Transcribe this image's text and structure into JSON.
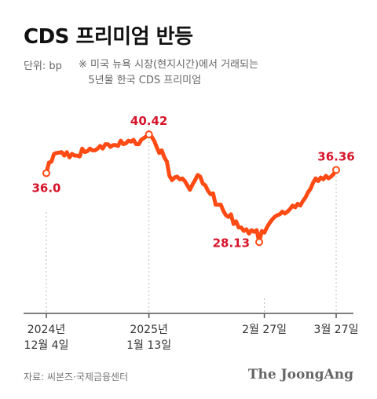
{
  "header": {
    "title": "CDS 프리미엄 반등",
    "unit": "단위: bp",
    "note": "※ 미국 뉴욕 시장(현지시간)에서 거래되는\n   5년물 한국 CDS 프리미엄"
  },
  "footer": {
    "source": "자료: 씨본즈·국제금융센터",
    "logo": "The JoongAng"
  },
  "colors": {
    "line": "#ff4a14",
    "marker_label": "#d6142a",
    "axis": "#555555",
    "guide": "#bbbbbb"
  },
  "chart_data": {
    "type": "line",
    "title": "CDS 프리미엄 반등",
    "ylabel": "단위: bp",
    "ylim": [
      20,
      45
    ],
    "grid": false,
    "x_ticks": [
      {
        "label": [
          "2024년",
          "12월 4일"
        ],
        "x": 0
      },
      {
        "label": [
          "2025년",
          "1월 13일"
        ],
        "x": 40
      },
      {
        "label": [
          "2월 27일"
        ],
        "x": 85
      },
      {
        "label": [
          "3월 27일"
        ],
        "x": 113
      }
    ],
    "annotations": [
      {
        "x": 0,
        "y": 36.0,
        "label": "36.0"
      },
      {
        "x": 40,
        "y": 40.42,
        "label": "40.42"
      },
      {
        "x": 83,
        "y": 28.13,
        "label": "28.13"
      },
      {
        "x": 113,
        "y": 36.36,
        "label": "36.36"
      }
    ],
    "series": [
      {
        "values": [
          [
            0,
            36.0
          ],
          [
            1,
            37.2
          ],
          [
            2,
            37.3
          ],
          [
            3,
            38.2
          ],
          [
            4,
            38.3
          ],
          [
            6,
            38.4
          ],
          [
            7,
            38.0
          ],
          [
            8,
            38.4
          ],
          [
            9,
            37.8
          ],
          [
            10,
            38.2
          ],
          [
            11,
            38.0
          ],
          [
            12,
            38.0
          ],
          [
            13,
            37.9
          ],
          [
            14,
            38.8
          ],
          [
            15,
            38.4
          ],
          [
            16,
            38.5
          ],
          [
            17,
            38.8
          ],
          [
            18,
            38.6
          ],
          [
            19,
            38.6
          ],
          [
            20,
            38.8
          ],
          [
            21,
            39.1
          ],
          [
            22,
            38.8
          ],
          [
            23,
            39.3
          ],
          [
            24,
            39.3
          ],
          [
            25,
            39.0
          ],
          [
            26,
            39.2
          ],
          [
            27,
            39.2
          ],
          [
            28,
            39.1
          ],
          [
            29,
            39.7
          ],
          [
            30,
            39.3
          ],
          [
            31,
            39.4
          ],
          [
            32,
            39.7
          ],
          [
            33,
            39.6
          ],
          [
            34,
            39.8
          ],
          [
            35,
            39.3
          ],
          [
            36,
            39.3
          ],
          [
            37,
            39.8
          ],
          [
            38,
            40.0
          ],
          [
            39,
            40.2
          ],
          [
            40,
            40.42
          ],
          [
            41,
            40.2
          ],
          [
            42,
            39.7
          ],
          [
            43,
            39.0
          ],
          [
            44,
            38.3
          ],
          [
            45,
            38.6
          ],
          [
            46,
            37.8
          ],
          [
            47,
            37.3
          ],
          [
            48,
            35.7
          ],
          [
            49,
            35.2
          ],
          [
            50,
            35.5
          ],
          [
            51,
            35.6
          ],
          [
            52,
            35.3
          ],
          [
            53,
            35.4
          ],
          [
            54,
            35.1
          ],
          [
            55,
            34.6
          ],
          [
            56,
            34.1
          ],
          [
            57,
            34.7
          ],
          [
            58,
            35.2
          ],
          [
            59,
            35.8
          ],
          [
            60,
            35.6
          ],
          [
            61,
            34.8
          ],
          [
            62,
            34.6
          ],
          [
            63,
            34.0
          ],
          [
            64,
            33.6
          ],
          [
            65,
            33.7
          ],
          [
            66,
            32.4
          ],
          [
            67,
            32.4
          ],
          [
            68,
            32.4
          ],
          [
            69,
            31.7
          ],
          [
            70,
            31.2
          ],
          [
            71,
            31.0
          ],
          [
            72,
            31.3
          ],
          [
            73,
            30.2
          ],
          [
            74,
            30.5
          ],
          [
            75,
            29.8
          ],
          [
            76,
            29.8
          ],
          [
            77,
            29.4
          ],
          [
            78,
            29.6
          ],
          [
            79,
            29.1
          ],
          [
            80,
            29.5
          ],
          [
            81,
            29.3
          ],
          [
            82,
            29.5
          ],
          [
            83,
            28.13
          ],
          [
            84,
            29.4
          ],
          [
            85,
            29.2
          ],
          [
            86,
            29.8
          ],
          [
            87,
            30.3
          ],
          [
            88,
            30.7
          ],
          [
            89,
            31.0
          ],
          [
            90,
            31.2
          ],
          [
            91,
            31.3
          ],
          [
            92,
            31.6
          ],
          [
            93,
            31.4
          ],
          [
            94,
            31.6
          ],
          [
            95,
            31.9
          ],
          [
            96,
            32.3
          ],
          [
            97,
            32.1
          ],
          [
            98,
            32.5
          ],
          [
            99,
            32.3
          ],
          [
            100,
            32.8
          ],
          [
            101,
            33.2
          ],
          [
            102,
            33.8
          ],
          [
            103,
            34.2
          ],
          [
            104,
            34.9
          ],
          [
            105,
            35.4
          ],
          [
            106,
            35.1
          ],
          [
            107,
            35.5
          ],
          [
            108,
            35.3
          ],
          [
            109,
            35.7
          ],
          [
            110,
            35.4
          ],
          [
            111,
            35.6
          ],
          [
            112,
            35.9
          ],
          [
            113,
            36.36
          ]
        ]
      }
    ]
  }
}
